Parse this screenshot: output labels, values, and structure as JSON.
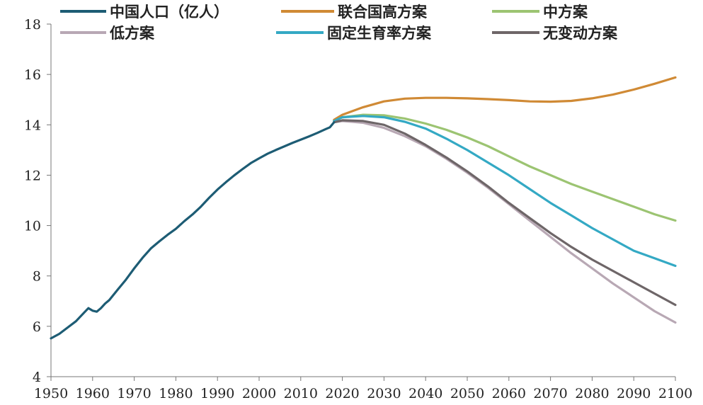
{
  "chart_data": {
    "type": "line",
    "title": "",
    "xlabel": "",
    "ylabel": "",
    "xlim": [
      1950,
      2100
    ],
    "ylim": [
      4,
      18
    ],
    "x_ticks": [
      "1950",
      "1960",
      "1970",
      "1980",
      "1990",
      "2000",
      "2010",
      "2020",
      "2030",
      "2040",
      "2050",
      "2060",
      "2070",
      "2080",
      "2090",
      "2100"
    ],
    "y_ticks": [
      "4",
      "6",
      "8",
      "10",
      "12",
      "14",
      "16",
      "18"
    ],
    "grid": false,
    "legend_position": "top",
    "series": [
      {
        "name": "中国人口（亿人）",
        "color": "#1d5c74",
        "points": [
          [
            1950,
            5.52
          ],
          [
            1952,
            5.7
          ],
          [
            1954,
            5.95
          ],
          [
            1956,
            6.2
          ],
          [
            1958,
            6.55
          ],
          [
            1959,
            6.72
          ],
          [
            1960,
            6.62
          ],
          [
            1961,
            6.58
          ],
          [
            1962,
            6.72
          ],
          [
            1963,
            6.9
          ],
          [
            1964,
            7.04
          ],
          [
            1966,
            7.45
          ],
          [
            1968,
            7.85
          ],
          [
            1970,
            8.3
          ],
          [
            1972,
            8.72
          ],
          [
            1974,
            9.09
          ],
          [
            1976,
            9.37
          ],
          [
            1978,
            9.63
          ],
          [
            1980,
            9.87
          ],
          [
            1982,
            10.17
          ],
          [
            1984,
            10.44
          ],
          [
            1986,
            10.75
          ],
          [
            1988,
            11.1
          ],
          [
            1990,
            11.43
          ],
          [
            1992,
            11.72
          ],
          [
            1994,
            11.99
          ],
          [
            1996,
            12.24
          ],
          [
            1998,
            12.48
          ],
          [
            2000,
            12.67
          ],
          [
            2002,
            12.85
          ],
          [
            2004,
            13.0
          ],
          [
            2006,
            13.14
          ],
          [
            2008,
            13.28
          ],
          [
            2010,
            13.41
          ],
          [
            2012,
            13.54
          ],
          [
            2014,
            13.68
          ],
          [
            2016,
            13.83
          ],
          [
            2017,
            13.9
          ],
          [
            2018,
            14.1
          ]
        ]
      },
      {
        "name": "联合国高方案",
        "color": "#d08a35",
        "points": [
          [
            2018,
            14.2
          ],
          [
            2020,
            14.4
          ],
          [
            2025,
            14.7
          ],
          [
            2030,
            14.93
          ],
          [
            2035,
            15.04
          ],
          [
            2040,
            15.07
          ],
          [
            2045,
            15.07
          ],
          [
            2050,
            15.05
          ],
          [
            2055,
            15.02
          ],
          [
            2060,
            14.98
          ],
          [
            2065,
            14.93
          ],
          [
            2070,
            14.92
          ],
          [
            2075,
            14.95
          ],
          [
            2080,
            15.05
          ],
          [
            2085,
            15.2
          ],
          [
            2090,
            15.4
          ],
          [
            2095,
            15.63
          ],
          [
            2100,
            15.88
          ]
        ]
      },
      {
        "name": "中方案",
        "color": "#9cc472",
        "points": [
          [
            2018,
            14.15
          ],
          [
            2020,
            14.3
          ],
          [
            2025,
            14.4
          ],
          [
            2030,
            14.38
          ],
          [
            2035,
            14.25
          ],
          [
            2040,
            14.05
          ],
          [
            2045,
            13.8
          ],
          [
            2050,
            13.5
          ],
          [
            2055,
            13.15
          ],
          [
            2060,
            12.75
          ],
          [
            2065,
            12.35
          ],
          [
            2070,
            12.0
          ],
          [
            2075,
            11.65
          ],
          [
            2080,
            11.35
          ],
          [
            2085,
            11.05
          ],
          [
            2090,
            10.75
          ],
          [
            2095,
            10.45
          ],
          [
            2100,
            10.2
          ]
        ]
      },
      {
        "name": "低方案",
        "color": "#b8a8b4",
        "points": [
          [
            2018,
            14.1
          ],
          [
            2020,
            14.15
          ],
          [
            2025,
            14.08
          ],
          [
            2030,
            13.88
          ],
          [
            2035,
            13.55
          ],
          [
            2040,
            13.15
          ],
          [
            2045,
            12.65
          ],
          [
            2050,
            12.1
          ],
          [
            2055,
            11.5
          ],
          [
            2060,
            10.85
          ],
          [
            2065,
            10.2
          ],
          [
            2070,
            9.55
          ],
          [
            2075,
            8.9
          ],
          [
            2080,
            8.3
          ],
          [
            2085,
            7.7
          ],
          [
            2090,
            7.15
          ],
          [
            2095,
            6.6
          ],
          [
            2100,
            6.15
          ]
        ]
      },
      {
        "name": "固定生育率方案",
        "color": "#34a9c4",
        "points": [
          [
            2018,
            14.15
          ],
          [
            2020,
            14.3
          ],
          [
            2025,
            14.35
          ],
          [
            2030,
            14.3
          ],
          [
            2035,
            14.12
          ],
          [
            2040,
            13.85
          ],
          [
            2045,
            13.45
          ],
          [
            2050,
            13.0
          ],
          [
            2055,
            12.5
          ],
          [
            2060,
            12.0
          ],
          [
            2065,
            11.45
          ],
          [
            2070,
            10.9
          ],
          [
            2075,
            10.4
          ],
          [
            2080,
            9.9
          ],
          [
            2085,
            9.45
          ],
          [
            2090,
            9.0
          ],
          [
            2095,
            8.7
          ],
          [
            2100,
            8.4
          ]
        ]
      },
      {
        "name": "无变动方案",
        "color": "#6e6668",
        "points": [
          [
            2018,
            14.1
          ],
          [
            2020,
            14.18
          ],
          [
            2025,
            14.15
          ],
          [
            2030,
            14.0
          ],
          [
            2035,
            13.65
          ],
          [
            2040,
            13.2
          ],
          [
            2045,
            12.7
          ],
          [
            2050,
            12.15
          ],
          [
            2055,
            11.55
          ],
          [
            2060,
            10.9
          ],
          [
            2065,
            10.3
          ],
          [
            2070,
            9.7
          ],
          [
            2075,
            9.15
          ],
          [
            2080,
            8.65
          ],
          [
            2085,
            8.2
          ],
          [
            2090,
            7.75
          ],
          [
            2095,
            7.3
          ],
          [
            2100,
            6.85
          ]
        ]
      }
    ]
  }
}
